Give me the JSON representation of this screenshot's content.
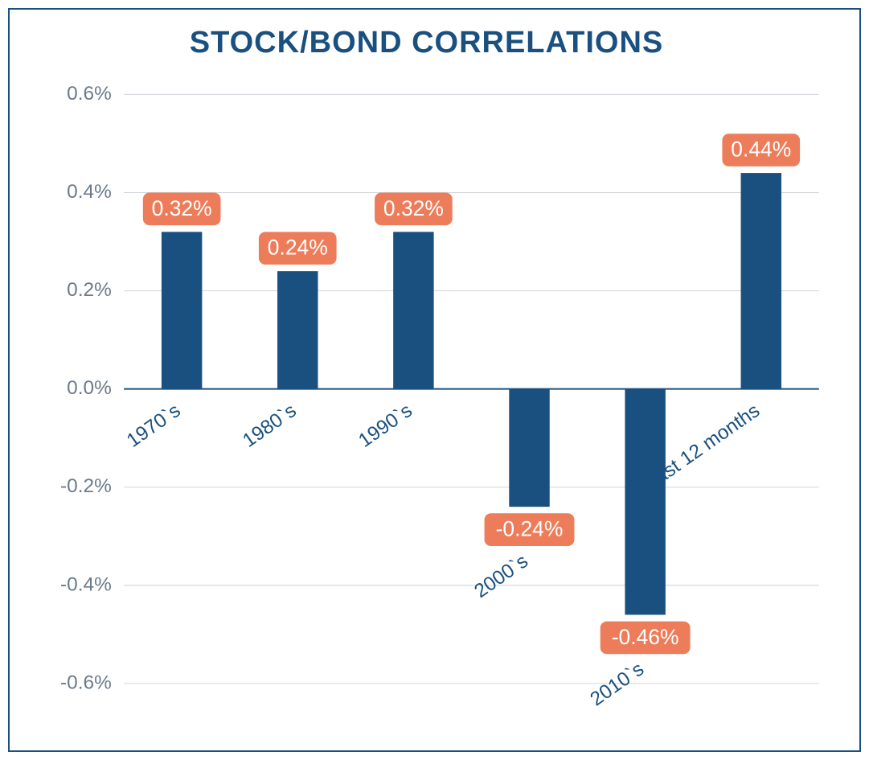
{
  "chart": {
    "type": "bar",
    "title": "STOCK/BOND CORRELATIONS",
    "title_color": "#1a5080",
    "title_fontsize": 38,
    "background_color": "#ffffff",
    "border_color": "#1a5080",
    "categories": [
      "1970`s",
      "1980`s",
      "1990`s",
      "2000`s",
      "2010`s",
      "Last 12 months"
    ],
    "xlabel_placement": [
      "below-zero",
      "below-zero",
      "below-zero",
      "below-bar",
      "below-bar",
      "below-zero"
    ],
    "values": [
      0.32,
      0.24,
      0.32,
      -0.24,
      -0.46,
      0.44
    ],
    "value_labels": [
      "0.32%",
      "0.24%",
      "0.32%",
      "-0.24%",
      "-0.46%",
      "0.44%"
    ],
    "bar_color": "#1a5080",
    "badge_color": "#ed7d5a",
    "badge_text_color": "#ffffff",
    "badge_fontsize": 26,
    "badge_radius": 8,
    "ylim_min": -0.6,
    "ylim_max": 0.6,
    "ytick_step": 0.2,
    "ytick_labels": [
      "-0.6%",
      "-0.4%",
      "-0.2%",
      "0.0%",
      "0.2%",
      "0.4%",
      "0.6%"
    ],
    "ytick_color": "#6b7a8a",
    "ytick_fontsize": 24,
    "grid_color": "#d0d5da",
    "zero_line_color": "#1a5080",
    "xtick_color": "#1a5080",
    "xtick_fontsize": 24,
    "xtick_rotation_deg": -35,
    "bar_width_ratio": 0.35
  }
}
